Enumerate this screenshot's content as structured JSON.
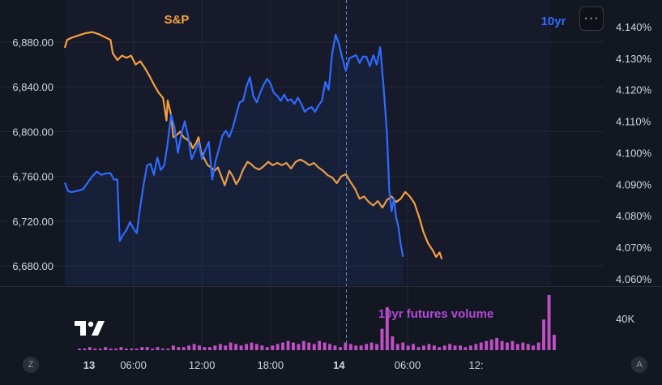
{
  "chart_data": {
    "type": "line",
    "series": [
      {
        "name": "S&P",
        "axis": "left",
        "color": "#f7a13b",
        "points": [
          [
            0,
            6875
          ],
          [
            0.2,
            6882
          ],
          [
            0.6,
            6884
          ],
          [
            1.2,
            6886
          ],
          [
            1.8,
            6888
          ],
          [
            2.4,
            6889
          ],
          [
            3.0,
            6887
          ],
          [
            3.6,
            6884
          ],
          [
            4.0,
            6882
          ],
          [
            4.2,
            6870
          ],
          [
            4.6,
            6864
          ],
          [
            5.0,
            6868
          ],
          [
            5.4,
            6866
          ],
          [
            5.8,
            6868
          ],
          [
            6.2,
            6860
          ],
          [
            6.6,
            6863
          ],
          [
            7.0,
            6857
          ],
          [
            7.4,
            6850
          ],
          [
            7.8,
            6842
          ],
          [
            8.2,
            6835
          ],
          [
            8.6,
            6830
          ],
          [
            8.9,
            6810
          ],
          [
            9.0,
            6828
          ],
          [
            9.3,
            6815
          ],
          [
            9.5,
            6795
          ],
          [
            9.8,
            6797
          ],
          [
            10.1,
            6800
          ],
          [
            10.4,
            6795
          ],
          [
            10.7,
            6793
          ],
          [
            11.0,
            6790
          ],
          [
            11.2,
            6785
          ],
          [
            11.5,
            6790
          ],
          [
            11.7,
            6795
          ],
          [
            11.9,
            6783
          ],
          [
            12.2,
            6776
          ],
          [
            12.5,
            6770
          ],
          [
            12.8,
            6768
          ],
          [
            13.1,
            6765
          ],
          [
            13.4,
            6768
          ],
          [
            13.7,
            6760
          ],
          [
            14.0,
            6752
          ],
          [
            14.4,
            6765
          ],
          [
            14.7,
            6760
          ],
          [
            15.0,
            6753
          ],
          [
            15.3,
            6758
          ],
          [
            15.6,
            6766
          ],
          [
            16.0,
            6773
          ],
          [
            16.3,
            6771
          ],
          [
            16.6,
            6768
          ],
          [
            17.0,
            6766
          ],
          [
            17.4,
            6769
          ],
          [
            17.8,
            6773
          ],
          [
            18.2,
            6770
          ],
          [
            18.6,
            6772
          ],
          [
            19.0,
            6770
          ],
          [
            19.4,
            6772
          ],
          [
            19.8,
            6767
          ],
          [
            20.2,
            6773
          ],
          [
            20.6,
            6775
          ],
          [
            21.0,
            6773
          ],
          [
            21.4,
            6770
          ],
          [
            21.8,
            6772
          ],
          [
            22.2,
            6768
          ],
          [
            22.6,
            6765
          ],
          [
            23.0,
            6761
          ],
          [
            23.4,
            6759
          ],
          [
            23.8,
            6754
          ],
          [
            24.2,
            6760
          ],
          [
            24.6,
            6762
          ],
          [
            25.0,
            6755
          ],
          [
            25.4,
            6749
          ],
          [
            25.8,
            6740
          ],
          [
            26.2,
            6742
          ],
          [
            26.6,
            6737
          ],
          [
            27.0,
            6734
          ],
          [
            27.4,
            6738
          ],
          [
            27.8,
            6732
          ],
          [
            28.2,
            6739
          ],
          [
            28.6,
            6742
          ],
          [
            29.0,
            6737
          ],
          [
            29.4,
            6740
          ],
          [
            29.8,
            6746
          ],
          [
            30.2,
            6742
          ],
          [
            30.6,
            6736
          ],
          [
            31.0,
            6724
          ],
          [
            31.4,
            6710
          ],
          [
            31.8,
            6700
          ],
          [
            32.2,
            6694
          ],
          [
            32.5,
            6688
          ],
          [
            32.8,
            6692
          ],
          [
            33.0,
            6686
          ]
        ]
      },
      {
        "name": "10yr",
        "axis": "right",
        "color": "#2f6bff",
        "points": [
          [
            0,
            4.0905
          ],
          [
            0.3,
            4.0878
          ],
          [
            0.6,
            4.0875
          ],
          [
            1.2,
            4.088
          ],
          [
            1.6,
            4.0885
          ],
          [
            2.0,
            4.0905
          ],
          [
            2.4,
            4.0925
          ],
          [
            2.8,
            4.094
          ],
          [
            3.2,
            4.093
          ],
          [
            3.6,
            4.0935
          ],
          [
            4.0,
            4.0935
          ],
          [
            4.3,
            4.0915
          ],
          [
            4.6,
            4.0915
          ],
          [
            4.8,
            4.072
          ],
          [
            5.1,
            4.074
          ],
          [
            5.4,
            4.0755
          ],
          [
            5.7,
            4.078
          ],
          [
            6.0,
            4.076
          ],
          [
            6.3,
            4.0745
          ],
          [
            6.6,
            4.083
          ],
          [
            6.9,
            4.09
          ],
          [
            7.2,
            4.096
          ],
          [
            7.5,
            4.0965
          ],
          [
            7.8,
            4.093
          ],
          [
            8.1,
            4.0985
          ],
          [
            8.4,
            4.0945
          ],
          [
            8.7,
            4.096
          ],
          [
            9.0,
            4.103
          ],
          [
            9.3,
            4.112
          ],
          [
            9.6,
            4.108
          ],
          [
            9.9,
            4.1
          ],
          [
            10.2,
            4.106
          ],
          [
            10.5,
            4.11
          ],
          [
            10.8,
            4.105
          ],
          [
            11.1,
            4.098
          ],
          [
            11.4,
            4.1005
          ],
          [
            11.7,
            4.1035
          ],
          [
            12.0,
            4.098
          ],
          [
            12.3,
            4.101
          ],
          [
            12.6,
            4.1035
          ],
          [
            12.9,
            4.0915
          ],
          [
            13.2,
            4.0975
          ],
          [
            13.5,
            4.1015
          ],
          [
            13.8,
            4.1055
          ],
          [
            14.1,
            4.107
          ],
          [
            14.4,
            4.105
          ],
          [
            14.7,
            4.108
          ],
          [
            15.0,
            4.112
          ],
          [
            15.3,
            4.116
          ],
          [
            15.6,
            4.1165
          ],
          [
            15.9,
            4.121
          ],
          [
            16.2,
            4.124
          ],
          [
            16.5,
            4.118
          ],
          [
            16.8,
            4.116
          ],
          [
            17.1,
            4.119
          ],
          [
            17.4,
            4.1215
          ],
          [
            17.7,
            4.1235
          ],
          [
            18.0,
            4.122
          ],
          [
            18.3,
            4.119
          ],
          [
            18.6,
            4.118
          ],
          [
            18.9,
            4.1165
          ],
          [
            19.2,
            4.1185
          ],
          [
            19.5,
            4.1165
          ],
          [
            19.8,
            4.117
          ],
          [
            20.1,
            4.1155
          ],
          [
            20.4,
            4.1175
          ],
          [
            20.7,
            4.1155
          ],
          [
            21.0,
            4.113
          ],
          [
            21.3,
            4.114
          ],
          [
            21.6,
            4.1145
          ],
          [
            21.9,
            4.113
          ],
          [
            22.2,
            4.115
          ],
          [
            22.5,
            4.1165
          ],
          [
            22.8,
            4.1225
          ],
          [
            23.1,
            4.12
          ],
          [
            23.4,
            4.1315
          ],
          [
            23.7,
            4.1375
          ],
          [
            24.0,
            4.1345
          ],
          [
            24.3,
            4.13
          ],
          [
            24.6,
            4.126
          ],
          [
            24.9,
            4.13
          ],
          [
            25.2,
            4.1305
          ],
          [
            25.5,
            4.131
          ],
          [
            25.8,
            4.1285
          ],
          [
            26.1,
            4.1305
          ],
          [
            26.4,
            4.1305
          ],
          [
            26.7,
            4.1275
          ],
          [
            27.0,
            4.131
          ],
          [
            27.3,
            4.128
          ],
          [
            27.6,
            4.1335
          ],
          [
            27.9,
            4.121
          ],
          [
            28.2,
            4.106
          ],
          [
            28.4,
            4.088
          ],
          [
            28.6,
            4.0815
          ],
          [
            28.8,
            4.0855
          ],
          [
            29.0,
            4.0795
          ],
          [
            29.2,
            4.0765
          ],
          [
            29.4,
            4.071
          ],
          [
            29.6,
            4.067
          ]
        ]
      }
    ],
    "volume": {
      "name": "10yr futures volume",
      "color": "#c04fc6",
      "values": [
        1,
        1,
        2,
        1,
        1,
        2,
        1,
        1,
        2,
        1,
        1,
        1,
        2,
        2,
        1,
        2,
        1,
        1,
        3,
        2,
        2,
        3,
        4,
        3,
        2,
        2,
        3,
        4,
        3,
        5,
        4,
        3,
        4,
        5,
        4,
        3,
        2,
        3,
        4,
        5,
        6,
        5,
        4,
        6,
        5,
        4,
        6,
        5,
        4,
        3,
        2,
        5,
        4,
        3,
        3,
        4,
        5,
        4,
        14,
        28,
        9,
        4,
        5,
        3,
        4,
        2,
        3,
        4,
        3,
        2,
        3,
        4,
        3,
        3,
        2,
        3,
        4,
        5,
        6,
        7,
        8,
        6,
        5,
        6,
        4,
        5,
        4,
        3,
        5,
        20,
        36,
        10
      ]
    },
    "left_axis": {
      "ticks": [
        "6,880.00",
        "6,840.00",
        "6,800.00",
        "6,760.00",
        "6,720.00",
        "6,680.00"
      ],
      "values": [
        6880,
        6840,
        6800,
        6760,
        6720,
        6680
      ],
      "range": [
        6670,
        6900
      ]
    },
    "right_axis": {
      "ticks": [
        "4.140%",
        "4.130%",
        "4.120%",
        "4.110%",
        "4.100%",
        "4.090%",
        "4.080%",
        "4.070%",
        "4.060%"
      ],
      "values": [
        4.14,
        4.13,
        4.12,
        4.11,
        4.1,
        4.09,
        4.08,
        4.07,
        4.06
      ],
      "range": [
        4.058,
        4.143
      ]
    },
    "volume_axis": {
      "ticks": [
        "40K"
      ]
    },
    "x_axis": {
      "ticks": [
        "13",
        "06:00",
        "12:00",
        "18:00",
        "14",
        "06:00",
        "12:"
      ],
      "bold": [
        true,
        false,
        false,
        false,
        true,
        false,
        false
      ]
    },
    "crosshair": true,
    "grid": true
  },
  "labels": {
    "sp": "S&P",
    "tenyr": "10yr",
    "volume": "10yr futures volume",
    "more": "···",
    "logo": "TV",
    "z_button": "Z",
    "a_button": "A"
  }
}
